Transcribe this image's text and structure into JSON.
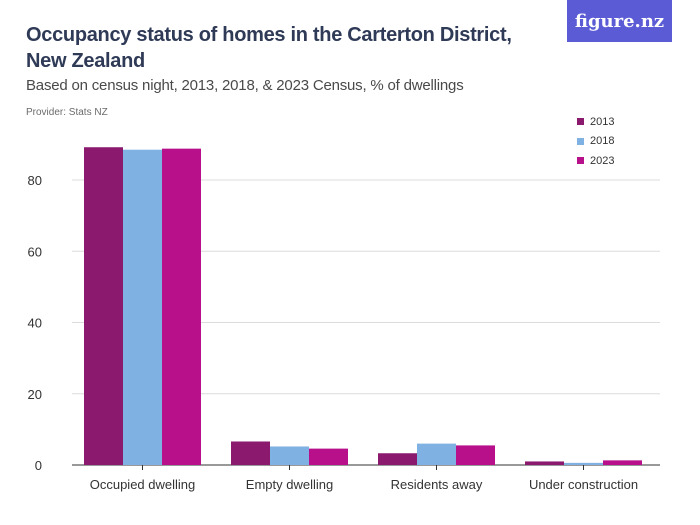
{
  "brand": "figure.nz",
  "title": "Occupancy status of homes in the Carterton District, New Zealand",
  "subtitle": "Based on census night, 2013, 2018, & 2023 Census, % of dwellings",
  "provider": "Provider: Stats NZ",
  "chart_data": {
    "type": "bar",
    "categories": [
      "Occupied dwelling",
      "Empty dwelling",
      "Residents away",
      "Under construction"
    ],
    "series": [
      {
        "name": "2013",
        "color": "#8b1a6f",
        "values": [
          89.2,
          6.6,
          3.3,
          1.0
        ]
      },
      {
        "name": "2018",
        "color": "#7fb2e3",
        "values": [
          88.5,
          5.2,
          6.0,
          0.6
        ]
      },
      {
        "name": "2023",
        "color": "#b80f8a",
        "values": [
          88.8,
          4.6,
          5.5,
          1.3
        ]
      }
    ],
    "yticks": [
      0,
      20,
      40,
      60,
      80
    ],
    "ylim": [
      0,
      95
    ],
    "grid": true,
    "legend_position": "top-right"
  }
}
